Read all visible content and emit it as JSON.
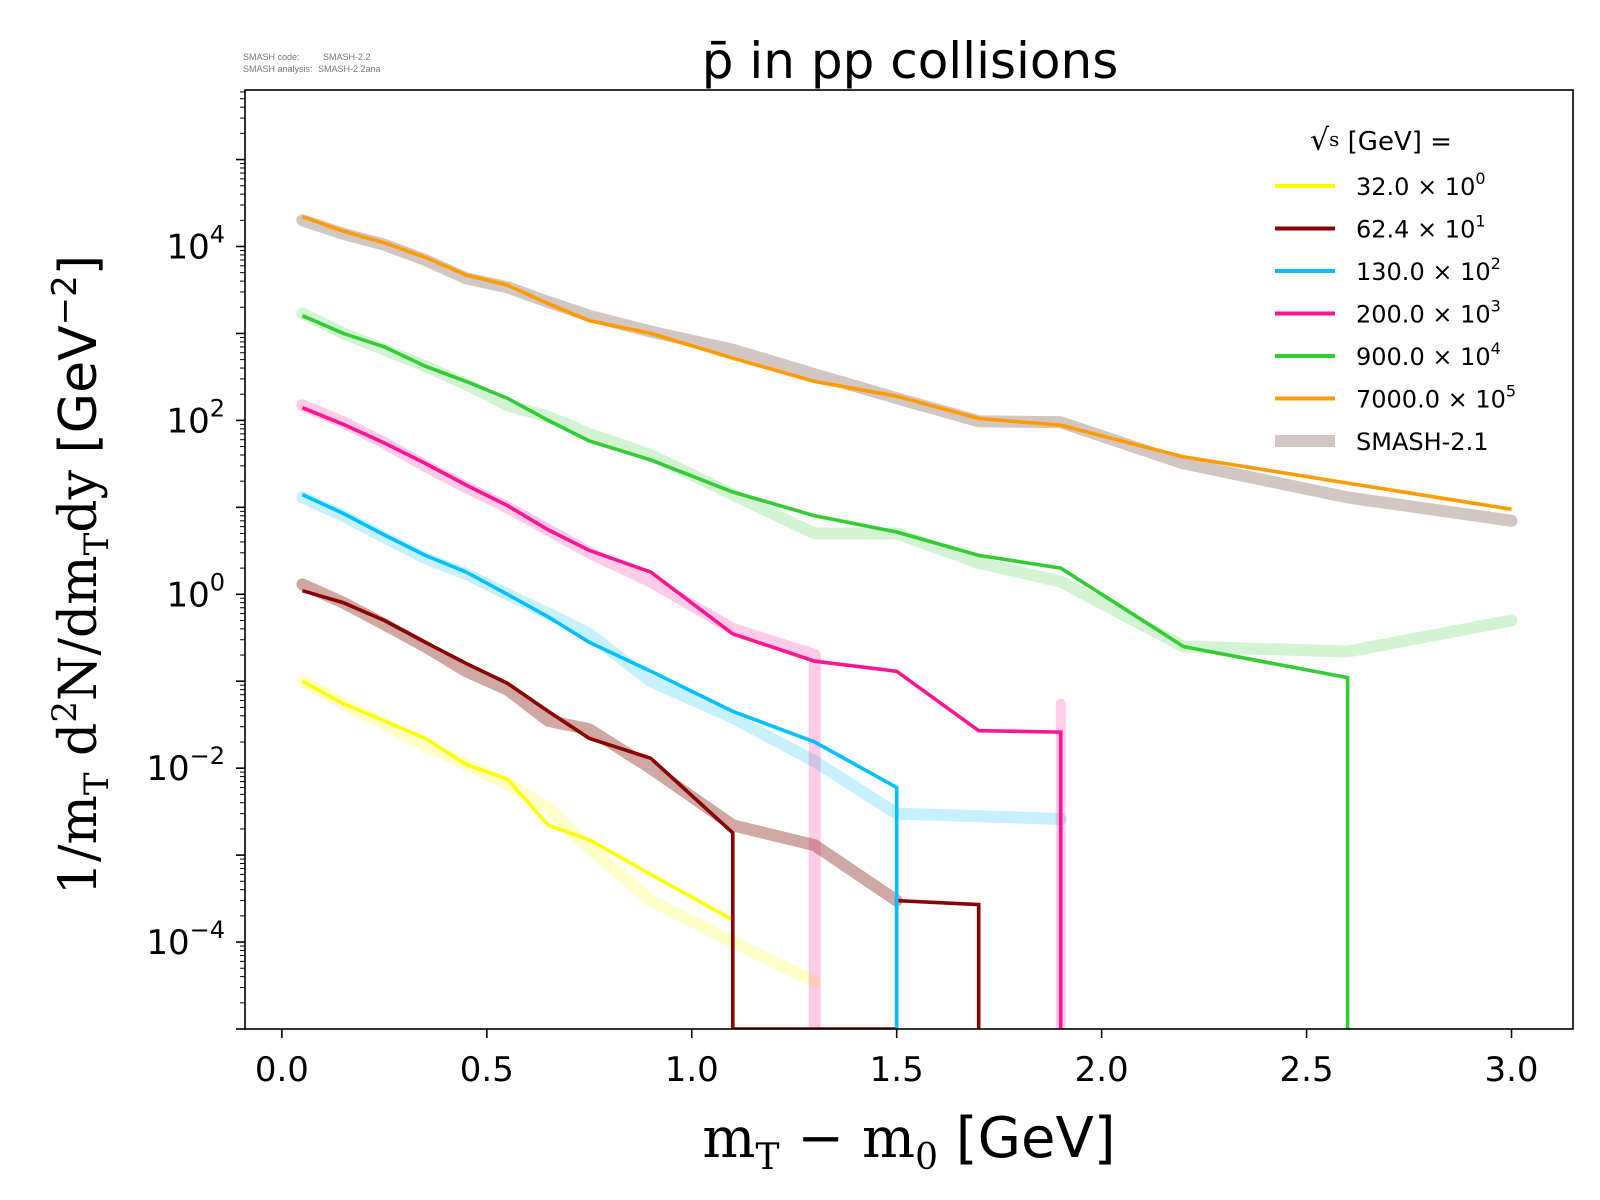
{
  "header_note": {
    "line1_label": "SMASH code:",
    "line1_value": "SMASH-2.2",
    "line2_label": "SMASH analysis:",
    "line2_value": "SMASH-2.2ana"
  },
  "chart_data": {
    "type": "line",
    "title": "p̄ in pp collisions",
    "xlabel": "m_T − m_0 [GeV]",
    "ylabel": "1/m_T d²N/dm_T dy [GeV⁻²]",
    "xlim": [
      -0.09,
      3.15
    ],
    "ylim_log10": [
      -5,
      5.8
    ],
    "y_scale": "log",
    "grid": false,
    "legend_position": "top-right",
    "legend_title": "√s [GeV] =",
    "x_ticks": [
      "0.0",
      "0.5",
      "1.0",
      "1.5",
      "2.0",
      "2.5",
      "3.0"
    ],
    "y_ticks": [
      {
        "base": "10",
        "exp": "4",
        "value": 10000
      },
      {
        "base": "10",
        "exp": "2",
        "value": 100
      },
      {
        "base": "10",
        "exp": "0",
        "value": 1
      },
      {
        "base": "10",
        "exp": "−2",
        "value": 0.01
      },
      {
        "base": "10",
        "exp": "−4",
        "value": 0.0001
      }
    ],
    "reference_color": "#d2c6c2",
    "series": [
      {
        "name": "32.0 × 10⁰",
        "label_main": "32.0 × 10",
        "label_exp": "0",
        "color": "#ffff00",
        "x": [
          0.05,
          0.15,
          0.25,
          0.35,
          0.45,
          0.55,
          0.65,
          0.75,
          0.9,
          1.1
        ],
        "y": [
          0.1,
          0.055,
          0.035,
          0.022,
          0.011,
          0.0075,
          0.0022,
          0.0015,
          0.0006,
          0.00018
        ],
        "ref_x": [
          0.05,
          0.15,
          0.25,
          0.35,
          0.45,
          0.55,
          0.65,
          0.75,
          0.9,
          1.1,
          1.3
        ],
        "ref_y": [
          0.1,
          0.055,
          0.032,
          0.018,
          0.011,
          0.0065,
          0.0035,
          0.0012,
          0.0003,
          0.0001,
          3.5e-05
        ]
      },
      {
        "name": "62.4 × 10¹",
        "label_main": "62.4 × 10",
        "label_exp": "1",
        "color": "#8b0000",
        "x": [
          0.05,
          0.15,
          0.25,
          0.35,
          0.45,
          0.55,
          0.65,
          0.75,
          0.9,
          1.1,
          1.1,
          1.5,
          1.5,
          1.7,
          1.7
        ],
        "y": [
          1.1,
          0.8,
          0.5,
          0.28,
          0.16,
          0.095,
          0.045,
          0.022,
          0.013,
          0.0018,
          1e-05,
          1e-05,
          0.0003,
          0.00027,
          1e-05
        ],
        "ref_x": [
          0.05,
          0.15,
          0.25,
          0.35,
          0.45,
          0.55,
          0.65,
          0.75,
          0.9,
          1.1,
          1.3,
          1.5
        ],
        "ref_y": [
          1.3,
          0.8,
          0.45,
          0.25,
          0.13,
          0.08,
          0.035,
          0.028,
          0.01,
          0.0022,
          0.0013,
          0.0003
        ]
      },
      {
        "name": "130.0 × 10²",
        "label_main": "130.0 × 10",
        "label_exp": "2",
        "color": "#00bfff",
        "x": [
          0.05,
          0.15,
          0.25,
          0.35,
          0.45,
          0.55,
          0.65,
          0.75,
          0.9,
          1.1,
          1.3,
          1.5,
          1.5
        ],
        "y": [
          14,
          8.5,
          4.8,
          2.8,
          1.8,
          1.0,
          0.55,
          0.28,
          0.13,
          0.045,
          0.02,
          0.006,
          1e-05
        ],
        "ref_x": [
          0.05,
          0.15,
          0.25,
          0.35,
          0.45,
          0.55,
          0.65,
          0.75,
          0.9,
          1.1,
          1.3,
          1.5,
          1.7,
          1.9
        ],
        "ref_y": [
          13,
          8,
          4.5,
          2.6,
          1.7,
          1.0,
          0.6,
          0.35,
          0.1,
          0.038,
          0.012,
          0.003,
          0.0028,
          0.0026
        ]
      },
      {
        "name": "200.0 × 10³",
        "label_main": "200.0 × 10",
        "label_exp": "3",
        "color": "#ff1493",
        "x": [
          0.05,
          0.15,
          0.25,
          0.35,
          0.45,
          0.55,
          0.65,
          0.75,
          0.9,
          1.1,
          1.3,
          1.5,
          1.7,
          1.9,
          1.9
        ],
        "y": [
          140,
          90,
          55,
          32,
          18,
          10.5,
          5.5,
          3.2,
          1.8,
          0.35,
          0.17,
          0.13,
          0.027,
          0.026,
          1e-05
        ],
        "ref_x": [
          0.05,
          0.15,
          0.25,
          0.35,
          0.45,
          0.55,
          0.65,
          0.75,
          0.9,
          1.1,
          1.3,
          1.3
        ],
        "ref_y": [
          150,
          95,
          55,
          30,
          17,
          10,
          5.5,
          3.0,
          1.4,
          0.4,
          0.2,
          1e-05
        ],
        "ref2_x": [
          1.9,
          1.9
        ],
        "ref2_y": [
          0.055,
          1e-05
        ]
      },
      {
        "name": "900.0 × 10⁴",
        "label_main": "900.0 × 10",
        "label_exp": "4",
        "color": "#32cd32",
        "x": [
          0.05,
          0.15,
          0.25,
          0.35,
          0.45,
          0.55,
          0.65,
          0.75,
          0.9,
          1.1,
          1.3,
          1.5,
          1.7,
          1.9,
          2.2,
          2.6,
          2.6
        ],
        "y": [
          1600,
          1000,
          700,
          420,
          280,
          180,
          100,
          58,
          35,
          15,
          8,
          5.2,
          2.8,
          2.0,
          0.25,
          0.11,
          1e-05
        ],
        "ref_x": [
          0.05,
          0.15,
          0.25,
          0.35,
          0.45,
          0.55,
          0.65,
          0.75,
          0.9,
          1.1,
          1.3,
          1.5,
          1.7,
          1.9,
          2.2,
          2.6,
          3.0
        ],
        "ref_y": [
          1700,
          1000,
          650,
          420,
          260,
          150,
          110,
          70,
          40,
          14,
          5,
          5,
          2.3,
          1.4,
          0.25,
          0.22,
          0.5
        ]
      },
      {
        "name": "7000.0 × 10⁵",
        "label_main": "7000.0 × 10",
        "label_exp": "5",
        "color": "#ff9a00",
        "x": [
          0.05,
          0.15,
          0.25,
          0.35,
          0.45,
          0.55,
          0.65,
          0.75,
          0.9,
          1.1,
          1.3,
          1.5,
          1.7,
          1.9,
          2.2,
          2.6,
          3.0
        ],
        "y": [
          22000,
          15000,
          11000,
          7500,
          4700,
          3600,
          2200,
          1400,
          1000,
          520,
          280,
          190,
          105,
          88,
          38,
          19,
          9.5
        ],
        "ref_x": [
          0.05,
          0.15,
          0.25,
          0.35,
          0.45,
          0.55,
          0.65,
          0.75,
          0.9,
          1.1,
          1.3,
          1.5,
          1.7,
          1.9,
          2.2,
          2.6,
          3.0
        ],
        "ref_y": [
          20000,
          14000,
          10500,
          7000,
          4300,
          3400,
          2300,
          1600,
          1050,
          650,
          340,
          180,
          98,
          95,
          32,
          13,
          7
        ]
      }
    ],
    "reference_label": "SMASH-2.1"
  }
}
